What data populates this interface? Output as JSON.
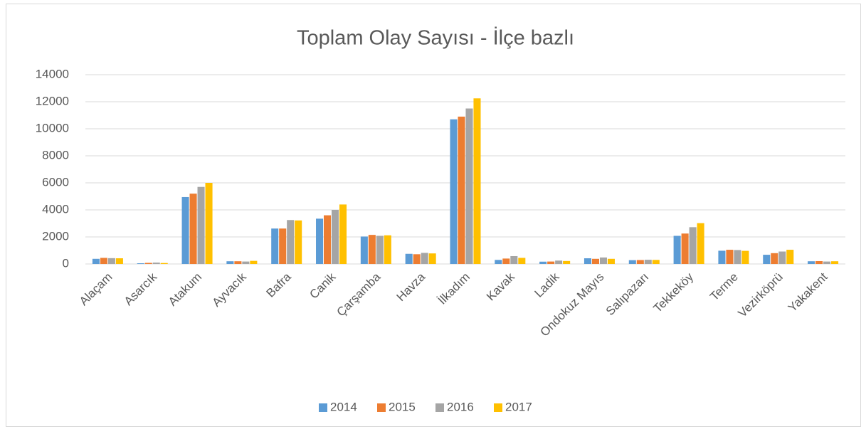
{
  "chart_data": {
    "type": "bar",
    "title": "Toplam Olay Sayısı - İlçe bazlı",
    "categories": [
      "Alaçam",
      "Asarcık",
      "Atakum",
      "Ayvacık",
      "Bafra",
      "Canik",
      "Çarşamba",
      "Havza",
      "İlkadım",
      "Kavak",
      "Ladik",
      "Ondokuz Mayıs",
      "Salıpazarı",
      "Tekkeköy",
      "Terme",
      "Vezirköprü",
      "Yakakent"
    ],
    "series": [
      {
        "name": "2014",
        "color": "#5b9bd5",
        "values": [
          380,
          50,
          4950,
          200,
          2620,
          3350,
          2030,
          750,
          10700,
          300,
          170,
          420,
          280,
          2080,
          980,
          680,
          200
        ]
      },
      {
        "name": "2015",
        "color": "#ed7d31",
        "values": [
          450,
          80,
          5200,
          200,
          2620,
          3600,
          2150,
          720,
          10900,
          400,
          180,
          380,
          290,
          2250,
          1050,
          800,
          210
        ]
      },
      {
        "name": "2016",
        "color": "#a5a5a5",
        "values": [
          430,
          100,
          5700,
          180,
          3250,
          4000,
          2080,
          820,
          11500,
          580,
          250,
          480,
          310,
          2720,
          1030,
          920,
          180
        ]
      },
      {
        "name": "2017",
        "color": "#ffc000",
        "values": [
          420,
          70,
          6000,
          230,
          3220,
          4400,
          2120,
          780,
          12250,
          450,
          220,
          380,
          300,
          3020,
          970,
          1050,
          200
        ]
      }
    ],
    "ylim": [
      0,
      14000
    ],
    "yticks": [
      0,
      2000,
      4000,
      6000,
      8000,
      10000,
      12000,
      14000
    ],
    "grid": true,
    "legend": "bottom"
  }
}
